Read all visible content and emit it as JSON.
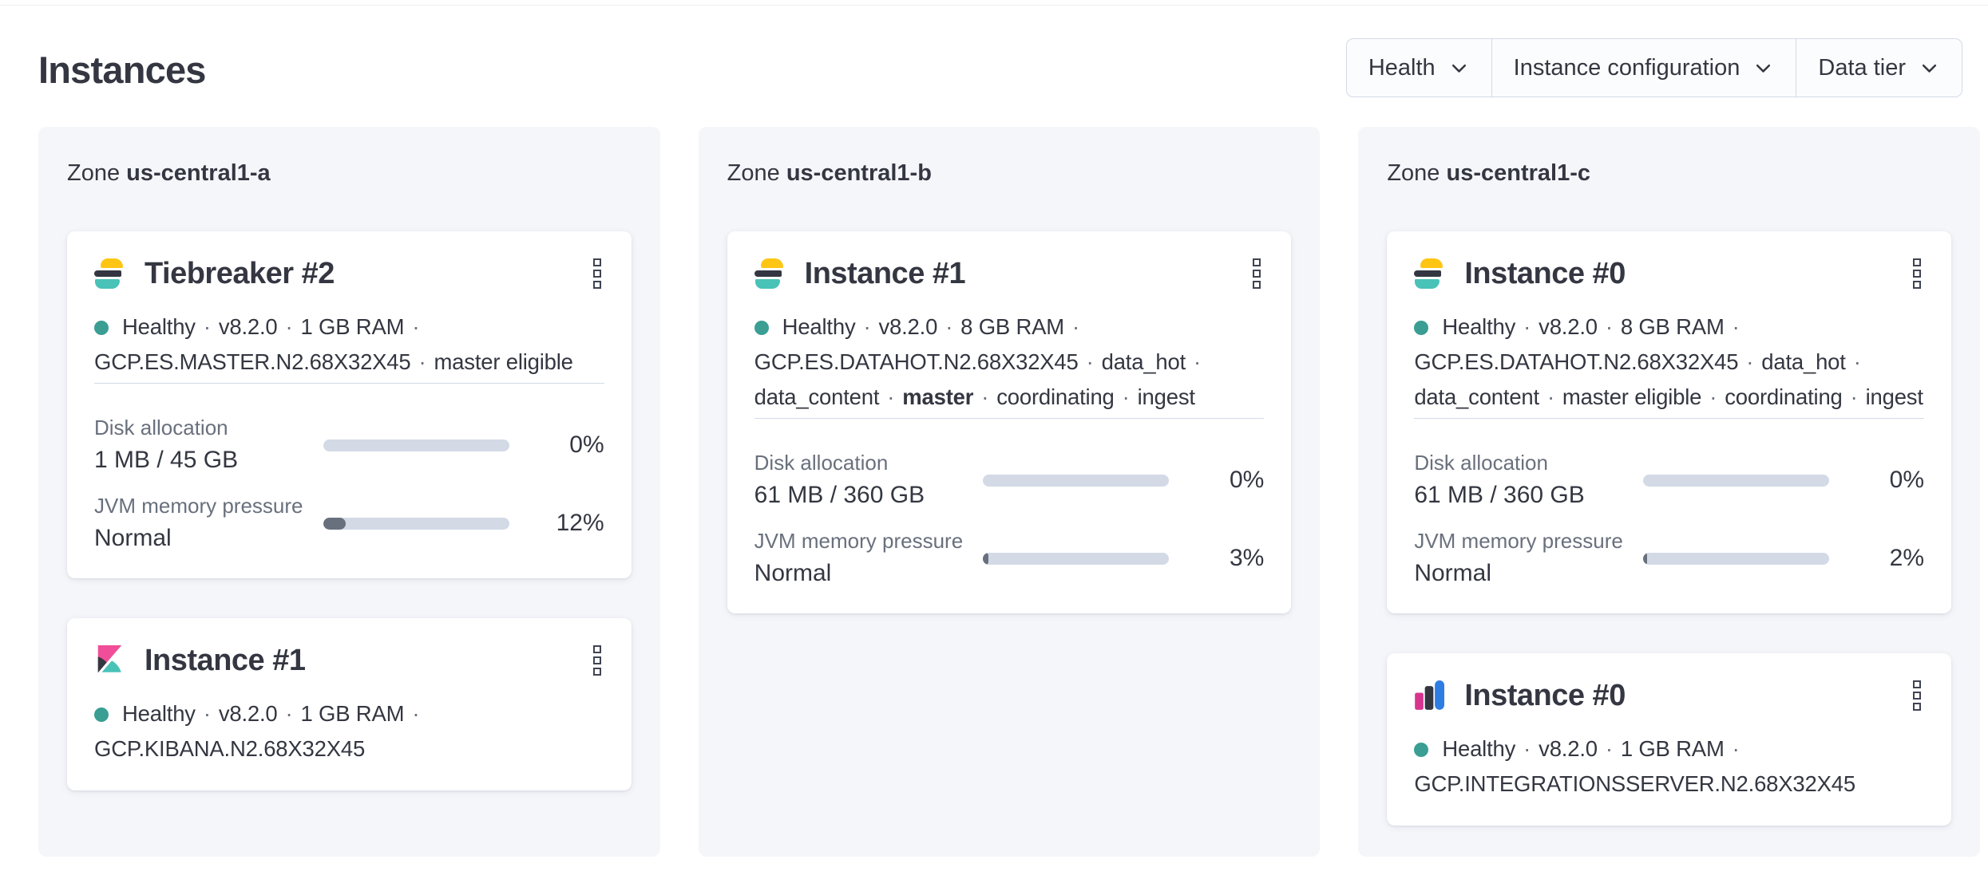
{
  "page": {
    "title": "Instances"
  },
  "ui": {
    "separator": "·"
  },
  "icons": {
    "dropdown": "chevron-down",
    "card_menu": "boxes-vertical-kebab",
    "health": "teal-dot"
  },
  "colors": {
    "health_dot": "#3A9E93",
    "logo_yellow": "#FEC514",
    "logo_dark": "#343741",
    "logo_teal": "#49C2B8",
    "logo_pink": "#F04E98",
    "logo_magenta": "#D6348F",
    "logo_blue": "#2D7DE2",
    "bar_track": "#D3DAE6",
    "bar_fill": "#69707D",
    "panel_bg": "#F5F6FA"
  },
  "filters": [
    {
      "label": "Health"
    },
    {
      "label": "Instance configuration"
    },
    {
      "label": "Data tier"
    }
  ],
  "zones": [
    {
      "label_prefix": "Zone",
      "name": "us-central1-a",
      "cards": [
        {
          "logo": "elasticsearch-logo",
          "title": "Tiebreaker #2",
          "status_lines": [
            [
              "Healthy",
              "v8.2.0",
              "1 GB RAM"
            ],
            [
              "GCP.ES.MASTER.N2.68X32X45",
              "master eligible"
            ]
          ],
          "metrics": [
            {
              "label": "Disk allocation",
              "value": "1 MB / 45 GB",
              "percent": 0,
              "percent_label": "0%"
            },
            {
              "label": "JVM memory pressure",
              "value": "Normal",
              "percent": 12,
              "percent_label": "12%"
            }
          ]
        },
        {
          "logo": "kibana-logo",
          "title": "Instance #1",
          "status_lines": [
            [
              "Healthy",
              "v8.2.0",
              "1 GB RAM"
            ],
            [
              "GCP.KIBANA.N2.68X32X45"
            ]
          ]
        }
      ]
    },
    {
      "label_prefix": "Zone",
      "name": "us-central1-b",
      "cards": [
        {
          "logo": "elasticsearch-logo",
          "title": "Instance #1",
          "status_lines": [
            [
              "Healthy",
              "v8.2.0",
              "8 GB RAM"
            ],
            [
              "GCP.ES.DATAHOT.N2.68X32X45",
              "data_hot"
            ],
            [
              "data_content",
              "master",
              "coordinating",
              "ingest"
            ]
          ],
          "metrics": [
            {
              "label": "Disk allocation",
              "value": "61 MB / 360 GB",
              "percent": 0,
              "percent_label": "0%"
            },
            {
              "label": "JVM memory pressure",
              "value": "Normal",
              "percent": 3,
              "percent_label": "3%"
            }
          ]
        }
      ]
    },
    {
      "label_prefix": "Zone",
      "name": "us-central1-c",
      "cards": [
        {
          "logo": "elasticsearch-logo",
          "title": "Instance #0",
          "status_lines": [
            [
              "Healthy",
              "v8.2.0",
              "8 GB RAM"
            ],
            [
              "GCP.ES.DATAHOT.N2.68X32X45",
              "data_hot"
            ],
            [
              "data_content",
              "master eligible",
              "coordinating",
              "ingest"
            ]
          ],
          "metrics": [
            {
              "label": "Disk allocation",
              "value": "61 MB / 360 GB",
              "percent": 0,
              "percent_label": "0%"
            },
            {
              "label": "JVM memory pressure",
              "value": "Normal",
              "percent": 2,
              "percent_label": "2%"
            }
          ]
        },
        {
          "logo": "integrations-server-logo",
          "title": "Instance #0",
          "status_lines": [
            [
              "Healthy",
              "v8.2.0",
              "1 GB RAM"
            ],
            [
              "GCP.INTEGRATIONSSERVER.N2.68X32X45"
            ]
          ]
        }
      ]
    }
  ]
}
